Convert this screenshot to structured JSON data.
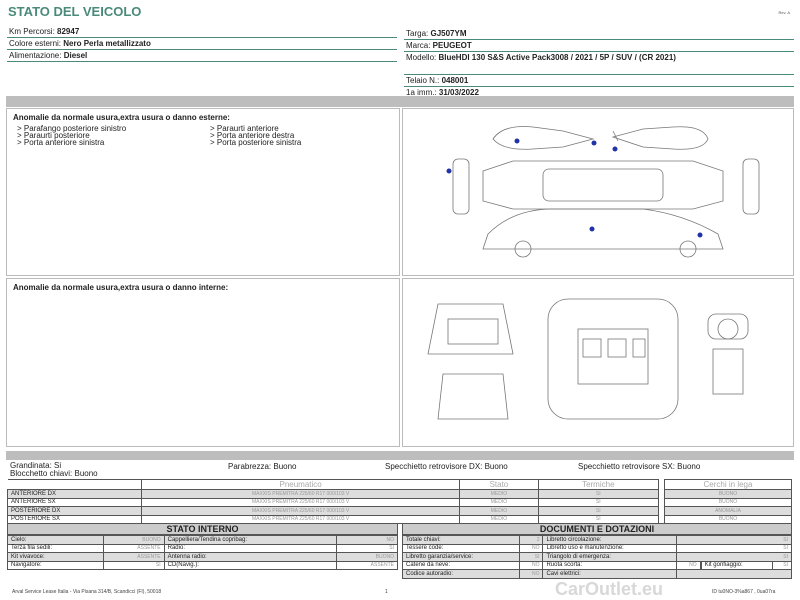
{
  "header": {
    "title": "STATO DEL VEICOLO",
    "rev": "Rev. A"
  },
  "vehicle": {
    "left": [
      {
        "label": "Km Percorsi: ",
        "value": "82947"
      },
      {
        "label": "Colore esterni: ",
        "value": "Nero Perla metallizzato"
      },
      {
        "label": "Alimentazione: ",
        "value": "Diesel"
      }
    ],
    "targa": {
      "label": "Targa: ",
      "value": "GJ507YM"
    },
    "marca": {
      "label": "Marca: ",
      "value": "PEUGEOT"
    },
    "modello": {
      "label": "Modello: ",
      "value": "BlueHDI 130 S&S Active Pack3008 / 2021 / 5P / SUV / (CR 2021)"
    },
    "telaio": {
      "label": "Telaio N.: ",
      "value": "048001"
    },
    "imm": {
      "label": "1a imm.: ",
      "value": "31/03/2022"
    }
  },
  "exterior": {
    "title": "Anomalie da normale usura,extra usura o danno esterne:",
    "col1": [
      "> Parafango posteriore sinistro",
      "> Paraurti posteriore",
      "> Porta anteriore sinistra"
    ],
    "col2": [
      "> Paraurti anteriore",
      "> Porta anteriore destra",
      "> Porta posteriore sinistra"
    ],
    "marker_color": "#2233aa"
  },
  "interior": {
    "title": "Anomalie da normale usura,extra usura o danno interne:"
  },
  "summary": {
    "grandinata": "Grandinata: Si",
    "blocchetto": "Blocchetto chiavi: Buono",
    "parabrezza": "Parabrezza: Buono",
    "spec_dx": "Specchietto retrovisore DX: Buono",
    "spec_sx": "Specchietto retrovisore SX: Buono"
  },
  "tyres": {
    "headers": [
      "Pneumatico",
      "Stato",
      "Termiche"
    ],
    "cerchi_header": "Cerchi in lega",
    "rows": [
      {
        "pos": "ANTERIORE DX",
        "tyre": "MAXXIS PREMITRA 225/60 R17 000/103 V",
        "stato": "MEDIO",
        "termiche": "SI",
        "cerchi": "BUONO"
      },
      {
        "pos": "ANTERIORE SX",
        "tyre": "MAXXIS PREMITRA 225/60 R17 000/103 V",
        "stato": "MEDIO",
        "termiche": "SI",
        "cerchi": "BUONO"
      },
      {
        "pos": "POSTERIORE DX",
        "tyre": "MAXXIS PREMITRA 225/60 R17 000/103 V",
        "stato": "MEDIO",
        "termiche": "SI",
        "cerchi": "ANOMALIA"
      },
      {
        "pos": "POSTERIORE SX",
        "tyre": "MAXXIS PREMITRA 225/60 R17 000/103 V",
        "stato": "MEDIO",
        "termiche": "SI",
        "cerchi": "BUONO"
      }
    ]
  },
  "stato_interno": {
    "title": "STATO INTERNO",
    "rows": [
      [
        "Cielo:",
        "BUONO",
        "Cappelliera/Tendina copribag:",
        "NO"
      ],
      [
        "Terza fila sedili:",
        "ASSENTE",
        "Radio:",
        "SI"
      ],
      [
        "Kit vivavoce:",
        "ASSENTE",
        "Antenna radio:",
        "BUONO"
      ],
      [
        "Navigatore:",
        "SI",
        "CD(Navig.):",
        "ASSENTE"
      ]
    ]
  },
  "documenti": {
    "title": "DOCUMENTI E DOTAZIONI",
    "rows": [
      [
        "Totale chiavi:",
        "2",
        "Libretto circolazione:",
        "SI"
      ],
      [
        "Tessere code:",
        "NO",
        "Libretto uso e manutenzione:",
        "SI"
      ],
      [
        "Libretto garanzia/service:",
        "SI",
        "Triangolo di emergenza:",
        "SI"
      ],
      [
        "Catene da neve:",
        "NO",
        "Ruota scorta:",
        "NO"
      ],
      [
        "Codice autoradio:",
        "NO",
        "Cavi elettrici:",
        ""
      ]
    ],
    "kit": {
      "label": "Kit gonfiaggio:",
      "value": "SI"
    }
  },
  "footer": {
    "address": "Arval Service Lease Italia - Via Pisana 314/B, Scandicci (FI), 50018",
    "page": "1",
    "id": "ID tu0NO-3%a867 , 0ua07ra"
  },
  "watermark": "CarOutlet.eu"
}
